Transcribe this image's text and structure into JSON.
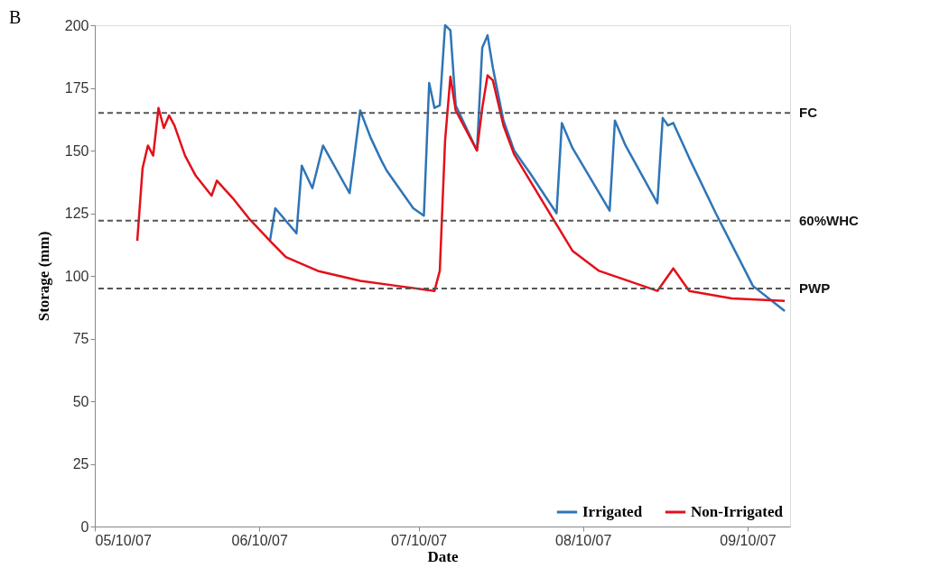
{
  "chart_data": {
    "type": "line",
    "title": "B",
    "xlabel": "Date",
    "ylabel": "Storage (mm)",
    "xlim": [
      "2007-05-10",
      "2007-09-18"
    ],
    "xticks": [
      {
        "value": "2007-05-10",
        "label": "05/10/07"
      },
      {
        "value": "2007-06-10",
        "label": "06/10/07"
      },
      {
        "value": "2007-07-10",
        "label": "07/10/07"
      },
      {
        "value": "2007-08-10",
        "label": "08/10/07"
      },
      {
        "value": "2007-09-10",
        "label": "09/10/07"
      }
    ],
    "ylim": [
      0,
      200
    ],
    "yticks": [
      0,
      25,
      50,
      75,
      100,
      125,
      150,
      175,
      200
    ],
    "grid": false,
    "legend": "bottom right",
    "line_style": "solid",
    "marker": "none",
    "series": [
      {
        "name": "Irrigated",
        "color": "#2e75b6",
        "x": [
          "2007-06-12",
          "2007-06-13",
          "2007-06-17",
          "2007-06-18",
          "2007-06-20",
          "2007-06-22",
          "2007-06-27",
          "2007-06-29",
          "2007-07-01",
          "2007-07-03",
          "2007-07-04",
          "2007-07-09",
          "2007-07-11",
          "2007-07-12",
          "2007-07-13",
          "2007-07-14",
          "2007-07-15",
          "2007-07-16",
          "2007-07-17",
          "2007-07-21",
          "2007-07-22",
          "2007-07-23",
          "2007-07-24",
          "2007-07-26",
          "2007-07-28",
          "2007-07-31",
          "2007-08-05",
          "2007-08-06",
          "2007-08-08",
          "2007-08-15",
          "2007-08-16",
          "2007-08-18",
          "2007-08-24",
          "2007-08-25",
          "2007-08-26",
          "2007-08-27",
          "2007-08-30",
          "2007-09-04",
          "2007-09-11",
          "2007-09-17"
        ],
        "values": [
          114,
          127,
          117,
          144,
          135,
          152,
          133,
          166,
          155,
          146,
          142,
          127,
          124,
          177,
          167,
          168,
          200,
          198,
          168,
          150,
          191,
          196,
          183,
          162,
          150,
          141,
          125,
          161,
          151,
          126,
          162,
          152,
          129,
          163,
          160,
          161,
          147,
          125,
          96,
          86
        ]
      },
      {
        "name": "Non-Irrigated",
        "color": "#e3101a",
        "x": [
          "2007-05-18",
          "2007-05-19",
          "2007-05-20",
          "2007-05-21",
          "2007-05-22",
          "2007-05-23",
          "2007-05-24",
          "2007-05-25",
          "2007-05-27",
          "2007-05-29",
          "2007-06-01",
          "2007-06-02",
          "2007-06-05",
          "2007-06-08",
          "2007-06-12",
          "2007-06-15",
          "2007-06-21",
          "2007-06-29",
          "2007-07-06",
          "2007-07-13",
          "2007-07-14",
          "2007-07-15",
          "2007-07-16",
          "2007-07-17",
          "2007-07-21",
          "2007-07-22",
          "2007-07-23",
          "2007-07-24",
          "2007-07-26",
          "2007-07-28",
          "2007-08-04",
          "2007-08-08",
          "2007-08-13",
          "2007-08-24",
          "2007-08-27",
          "2007-08-30",
          "2007-09-07",
          "2007-09-17"
        ],
        "values": [
          114,
          143,
          152,
          148,
          167,
          159,
          164,
          160,
          148,
          140,
          132,
          138,
          131,
          123,
          114,
          107.5,
          102,
          98,
          96,
          94,
          102,
          154,
          179.5,
          166,
          150,
          167,
          180,
          178,
          160,
          148.5,
          124,
          110,
          102,
          94,
          103,
          94,
          91,
          90
        ]
      }
    ],
    "ref_lines": [
      {
        "axis": "y",
        "value": 165,
        "label": "FC",
        "color": "#555555",
        "line_style": "dashed"
      },
      {
        "axis": "y",
        "value": 122,
        "label": "60%WHC",
        "color": "#555555",
        "line_style": "dashed"
      },
      {
        "axis": "y",
        "value": 95,
        "label": "PWP",
        "color": "#555555",
        "line_style": "dashed"
      }
    ]
  }
}
